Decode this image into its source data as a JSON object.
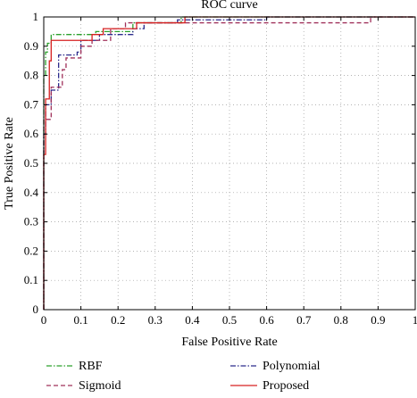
{
  "chart_data": {
    "type": "line",
    "title": "ROC curve",
    "xlabel": "False Positive Rate",
    "ylabel": "True Positive Rate",
    "xlim": [
      0,
      1
    ],
    "ylim": [
      0,
      1
    ],
    "grid": true,
    "legend_placement": "below",
    "x_ticks": [
      "0",
      "0.1",
      "0.2",
      "0.3",
      "0.4",
      "0.5",
      "0.6",
      "0.7",
      "0.8",
      "0.9",
      "1"
    ],
    "y_ticks": [
      "0",
      "0.1",
      "0.2",
      "0.3",
      "0.4",
      "0.5",
      "0.6",
      "0.7",
      "0.8",
      "0.9",
      "1"
    ],
    "series": [
      {
        "name": "RBF",
        "color": "#2ca02c",
        "dash": "dashdot",
        "x": [
          0,
          0,
          0.005,
          0.005,
          0.01,
          0.01,
          0.02,
          0.02,
          0.14,
          0.14,
          0.24,
          0.24,
          0.37,
          0.37,
          1
        ],
        "y": [
          0,
          0.8,
          0.8,
          0.88,
          0.88,
          0.91,
          0.91,
          0.94,
          0.94,
          0.95,
          0.95,
          0.98,
          0.98,
          1,
          1
        ]
      },
      {
        "name": "Polynomial",
        "color": "#2b2b8c",
        "dash": "dashdot",
        "x": [
          0,
          0,
          0.005,
          0.005,
          0.02,
          0.02,
          0.04,
          0.04,
          0.06,
          0.06,
          0.09,
          0.09,
          0.1,
          0.1,
          0.15,
          0.15,
          0.24,
          0.24,
          0.27,
          0.27,
          0.36,
          0.36,
          0.6,
          0.6,
          1
        ],
        "y": [
          0,
          0.6,
          0.6,
          0.7,
          0.7,
          0.75,
          0.75,
          0.87,
          0.87,
          0.87,
          0.87,
          0.88,
          0.88,
          0.92,
          0.92,
          0.94,
          0.94,
          0.96,
          0.96,
          0.98,
          0.98,
          0.99,
          0.99,
          1,
          1
        ]
      },
      {
        "name": "Sigmoid",
        "color": "#a0305a",
        "dash": "dashed",
        "x": [
          0,
          0,
          0.02,
          0.02,
          0.05,
          0.05,
          0.06,
          0.06,
          0.1,
          0.1,
          0.13,
          0.13,
          0.18,
          0.18,
          0.22,
          0.22,
          0.4,
          0.4,
          0.88,
          0.88,
          1
        ],
        "y": [
          0,
          0.65,
          0.65,
          0.76,
          0.76,
          0.82,
          0.82,
          0.86,
          0.86,
          0.9,
          0.9,
          0.92,
          0.92,
          0.96,
          0.96,
          0.98,
          0.98,
          0.98,
          0.98,
          1,
          1
        ]
      },
      {
        "name": "Proposed",
        "color": "#d62020",
        "dash": "solid",
        "x": [
          0,
          0,
          0.005,
          0.005,
          0.015,
          0.015,
          0.02,
          0.02,
          0.07,
          0.07,
          0.1,
          0.1,
          0.13,
          0.13,
          0.16,
          0.16,
          0.25,
          0.25,
          0.38,
          0.38,
          1
        ],
        "y": [
          0,
          0.53,
          0.53,
          0.72,
          0.72,
          0.85,
          0.85,
          0.92,
          0.92,
          0.92,
          0.92,
          0.92,
          0.92,
          0.94,
          0.94,
          0.96,
          0.96,
          0.98,
          0.98,
          1,
          1
        ]
      }
    ],
    "legend": [
      {
        "name": "RBF",
        "color": "#2ca02c",
        "dash": "dashdot"
      },
      {
        "name": "Polynomial",
        "color": "#2b2b8c",
        "dash": "dashdot"
      },
      {
        "name": "Sigmoid",
        "color": "#a0305a",
        "dash": "dashed"
      },
      {
        "name": "Proposed",
        "color": "#d62020",
        "dash": "solid"
      }
    ]
  }
}
